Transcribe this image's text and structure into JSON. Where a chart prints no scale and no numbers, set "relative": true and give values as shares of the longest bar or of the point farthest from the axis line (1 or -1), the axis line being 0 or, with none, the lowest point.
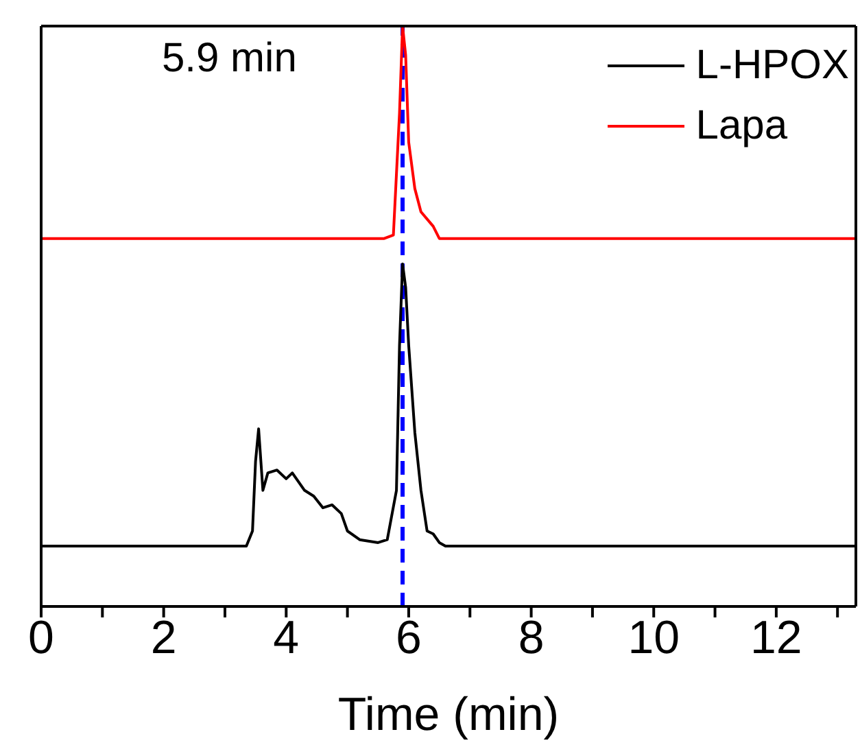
{
  "chart_data": {
    "type": "line",
    "relative": true,
    "xlabel": "Time (min)",
    "xlim": [
      0,
      13.3
    ],
    "xticks": [
      0,
      {
        "value": 1,
        "label": null
      },
      2,
      {
        "value": 3,
        "label": null
      },
      4,
      {
        "value": 5,
        "label": null
      },
      6,
      {
        "value": 7,
        "label": null
      },
      8,
      {
        "value": 9,
        "label": null
      },
      10,
      {
        "value": 11,
        "label": null
      },
      12,
      {
        "value": 13,
        "label": null
      }
    ],
    "tick_labels": "x",
    "legend": "top right",
    "grid": false,
    "marker": "none",
    "line_style": "solid",
    "annotations": [
      "5.9 min"
    ],
    "ref_lines": [
      {
        "axis": "x",
        "value": 5.9,
        "label": null,
        "color": "#0000ff",
        "line_style": "dashed"
      }
    ],
    "series": [
      {
        "name": "L-HPOX",
        "color": "#000000",
        "x": [
          0,
          3.35,
          3.45,
          3.5,
          3.55,
          3.62,
          3.7,
          3.85,
          4.0,
          4.1,
          4.3,
          4.45,
          4.6,
          4.75,
          4.9,
          5.0,
          5.2,
          5.5,
          5.65,
          5.8,
          5.85,
          5.9,
          5.95,
          6.0,
          6.1,
          6.2,
          6.3,
          6.4,
          6.5,
          6.6,
          13.3
        ],
        "values": [
          0.104,
          0.104,
          0.13,
          0.25,
          0.306,
          0.2,
          0.23,
          0.235,
          0.22,
          0.23,
          0.2,
          0.19,
          0.17,
          0.175,
          0.16,
          0.13,
          0.115,
          0.11,
          0.115,
          0.2,
          0.45,
          0.59,
          0.55,
          0.45,
          0.3,
          0.2,
          0.13,
          0.125,
          0.11,
          0.104,
          0.104
        ]
      },
      {
        "name": "Lapa",
        "color": "#ff0000",
        "x": [
          0,
          5.6,
          5.75,
          5.85,
          5.9,
          5.95,
          6.0,
          6.1,
          6.2,
          6.4,
          6.5,
          13.3
        ],
        "values": [
          0.634,
          0.634,
          0.64,
          0.85,
          1.0,
          0.95,
          0.8,
          0.72,
          0.68,
          0.655,
          0.634,
          0.634
        ]
      }
    ]
  }
}
